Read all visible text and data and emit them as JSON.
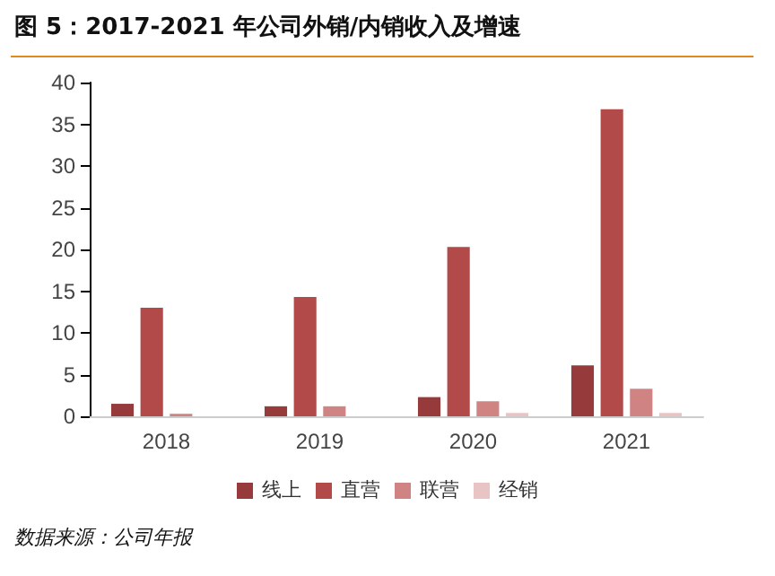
{
  "chart_data": {
    "type": "bar",
    "title": "图 5：2017-2021 年公司外销/内销收入及增速",
    "annotations": [
      "数据来源：公司年报"
    ],
    "categories": [
      "2018",
      "2019",
      "2020",
      "2021"
    ],
    "series": [
      {
        "name": "线上",
        "color": "#963a3b",
        "values": [
          1.5,
          1.2,
          2.3,
          6.1
        ]
      },
      {
        "name": "直营",
        "color": "#b34a4a",
        "values": [
          13.0,
          14.3,
          20.3,
          36.8
        ]
      },
      {
        "name": "联营",
        "color": "#d08383",
        "values": [
          0.3,
          1.2,
          1.8,
          3.3
        ]
      },
      {
        "name": "经销",
        "color": "#e8c4c4",
        "values": [
          null,
          null,
          0.4,
          0.4
        ]
      }
    ],
    "ylim": [
      0,
      40
    ],
    "yticks": [
      0,
      5,
      10,
      15,
      20,
      25,
      30,
      35,
      40
    ],
    "grid": false,
    "legend": "bottom"
  }
}
